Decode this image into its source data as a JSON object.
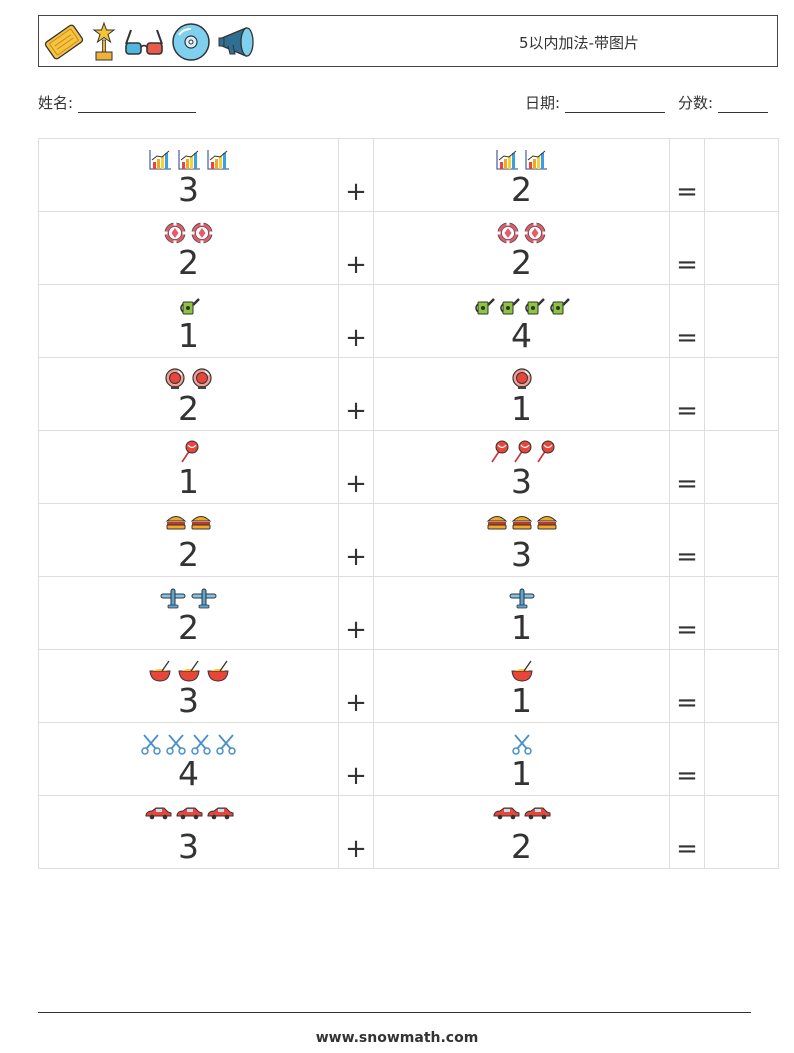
{
  "header": {
    "title": "5以内加法-带图片",
    "icons": [
      "cinema-ticket-icon",
      "award-trophy-icon",
      "3d-glasses-icon",
      "cd-disc-icon",
      "megaphone-icon"
    ]
  },
  "info": {
    "name_label": "姓名:",
    "date_label": "日期:",
    "score_label": "分数:"
  },
  "operators": {
    "plus": "+",
    "equals": "="
  },
  "problems": [
    {
      "a": "3",
      "b": "2",
      "icon": "bar-chart-icon"
    },
    {
      "a": "2",
      "b": "2",
      "icon": "poker-chip-icon"
    },
    {
      "a": "1",
      "b": "4",
      "icon": "watering-can-icon"
    },
    {
      "a": "2",
      "b": "1",
      "icon": "gumball-machine-icon"
    },
    {
      "a": "1",
      "b": "3",
      "icon": "lollipop-icon"
    },
    {
      "a": "2",
      "b": "3",
      "icon": "hamburger-icon"
    },
    {
      "a": "2",
      "b": "1",
      "icon": "airplane-icon"
    },
    {
      "a": "3",
      "b": "1",
      "icon": "noodle-bowl-icon"
    },
    {
      "a": "4",
      "b": "1",
      "icon": "scissors-icon"
    },
    {
      "a": "3",
      "b": "2",
      "icon": "race-car-icon"
    }
  ],
  "footer": {
    "url": "www.snowmath.com"
  }
}
